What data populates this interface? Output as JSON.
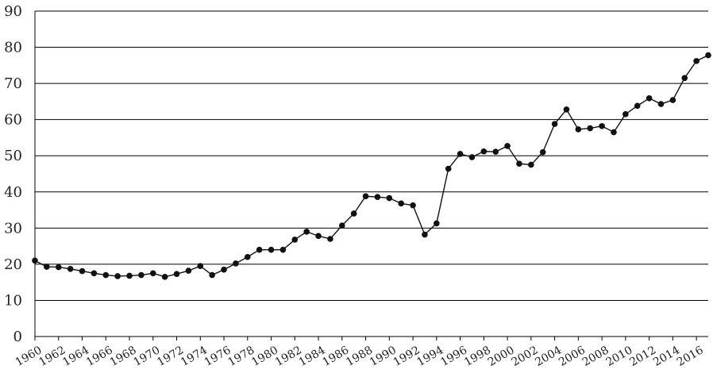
{
  "chart_data": {
    "type": "line",
    "title": "",
    "xlabel": "",
    "ylabel": "",
    "ylim": [
      0,
      90
    ],
    "y_ticks": [
      0,
      10,
      20,
      30,
      40,
      50,
      60,
      70,
      80,
      90
    ],
    "x_tick_labels": [
      "1960",
      "1962",
      "1964",
      "1966",
      "1968",
      "1970",
      "1972",
      "1974",
      "1976",
      "1978",
      "1980",
      "1982",
      "1984",
      "1986",
      "1988",
      "1990",
      "1992",
      "1994",
      "1996",
      "1998",
      "2000",
      "2002",
      "2004",
      "2006",
      "2008",
      "2010",
      "2012",
      "2014",
      "2016"
    ],
    "grid": true,
    "series": [
      {
        "x": [
          1960,
          1961,
          1962,
          1963,
          1964,
          1965,
          1966,
          1967,
          1968,
          1969,
          1970,
          1971,
          1972,
          1973,
          1974,
          1975,
          1976,
          1977,
          1978,
          1979,
          1980,
          1981,
          1982,
          1983,
          1984,
          1985,
          1986,
          1987,
          1988,
          1989,
          1990,
          1991,
          1992,
          1993,
          1994,
          1995,
          1996,
          1997,
          1998,
          1999,
          2000,
          2001,
          2002,
          2003,
          2004,
          2005,
          2006,
          2007,
          2008,
          2009,
          2010,
          2011,
          2012,
          2013,
          2014,
          2015,
          2016,
          2017
        ],
        "values": [
          21,
          19.3,
          19.2,
          18.7,
          18.1,
          17.5,
          17,
          16.7,
          16.8,
          17,
          17.5,
          16.5,
          17.3,
          18.2,
          19.5,
          17,
          18.5,
          20.2,
          22,
          24,
          24,
          24,
          26.8,
          29,
          27.8,
          27,
          30.7,
          34,
          38.8,
          38.6,
          38.3,
          36.8,
          36.3,
          28.2,
          31.3,
          46.4,
          50.5,
          49.6,
          51.2,
          51.1,
          52.7,
          47.8,
          47.5,
          51,
          58.8,
          62.8,
          57.3,
          57.6,
          58.2,
          56.5,
          61.5,
          63.8,
          65.9,
          64.3,
          65.4,
          71.5,
          76.2,
          77.8
        ]
      }
    ]
  }
}
